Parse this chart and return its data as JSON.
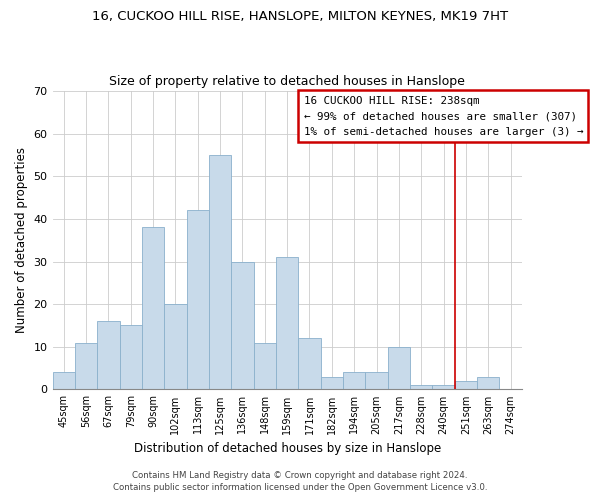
{
  "title": "16, CUCKOO HILL RISE, HANSLOPE, MILTON KEYNES, MK19 7HT",
  "subtitle": "Size of property relative to detached houses in Hanslope",
  "xlabel": "Distribution of detached houses by size in Hanslope",
  "ylabel": "Number of detached properties",
  "bin_labels": [
    "45sqm",
    "56sqm",
    "67sqm",
    "79sqm",
    "90sqm",
    "102sqm",
    "113sqm",
    "125sqm",
    "136sqm",
    "148sqm",
    "159sqm",
    "171sqm",
    "182sqm",
    "194sqm",
    "205sqm",
    "217sqm",
    "228sqm",
    "240sqm",
    "251sqm",
    "263sqm",
    "274sqm"
  ],
  "bar_values": [
    4,
    11,
    16,
    15,
    38,
    20,
    42,
    55,
    30,
    11,
    31,
    12,
    3,
    4,
    4,
    10,
    1,
    1,
    2,
    3,
    0
  ],
  "bar_color": "#c8daea",
  "bar_edge_color": "#8ab0cc",
  "grid_color": "#cccccc",
  "vline_color": "#cc0000",
  "box_text_line1": "16 CUCKOO HILL RISE: 238sqm",
  "box_text_line2": "← 99% of detached houses are smaller (307)",
  "box_text_line3": "1% of semi-detached houses are larger (3) →",
  "box_edge_color": "#cc0000",
  "ylim": [
    0,
    70
  ],
  "yticks": [
    0,
    10,
    20,
    30,
    40,
    50,
    60,
    70
  ],
  "footer1": "Contains HM Land Registry data © Crown copyright and database right 2024.",
  "footer2": "Contains public sector information licensed under the Open Government Licence v3.0."
}
